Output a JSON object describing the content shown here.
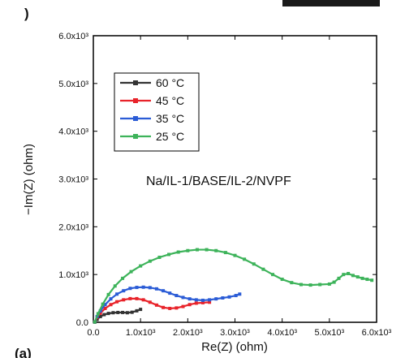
{
  "chart_data": {
    "type": "line",
    "xlabel": "Re(Z) (ohm)",
    "ylabel": "−Im(Z) (ohm)",
    "xlim": [
      0,
      6000
    ],
    "ylim": [
      0,
      6000
    ],
    "x_ticks": [
      0,
      1000,
      2000,
      3000,
      4000,
      5000,
      6000
    ],
    "y_ticks": [
      0,
      1000,
      2000,
      3000,
      4000,
      5000,
      6000
    ],
    "x_tick_labels": [
      "0.0",
      "1.0x10³",
      "2.0x10³",
      "3.0x10³",
      "4.0x10³",
      "5.0x10³",
      "6.0x10³"
    ],
    "y_tick_labels": [
      "0.0",
      "1.0x10³",
      "2.0x10³",
      "3.0x10³",
      "4.0x10³",
      "5.0x10³",
      "6.0x10³"
    ],
    "annotation": "Na/IL-1/BASE/IL-2/NVPF",
    "panel_label": ")",
    "caption_fragment": "(a)",
    "legend_position": "top-left",
    "grid": false,
    "series": [
      {
        "name": "60 °C",
        "color": "#333333",
        "x": [
          30,
          80,
          150,
          230,
          320,
          420,
          520,
          620,
          720,
          820,
          920,
          1000
        ],
        "y": [
          5,
          60,
          120,
          160,
          185,
          200,
          205,
          205,
          200,
          210,
          240,
          270
        ]
      },
      {
        "name": "45 °C",
        "color": "#e8232a",
        "x": [
          30,
          80,
          150,
          250,
          370,
          500,
          640,
          780,
          920,
          1060,
          1200,
          1340,
          1480,
          1620,
          1760,
          1900,
          2040,
          2180,
          2320,
          2460
        ],
        "y": [
          5,
          100,
          190,
          290,
          370,
          430,
          470,
          495,
          495,
          470,
          420,
          360,
          310,
          290,
          300,
          330,
          370,
          400,
          410,
          420
        ]
      },
      {
        "name": "35 °C",
        "color": "#2b5cd6",
        "x": [
          30,
          80,
          150,
          250,
          370,
          500,
          640,
          780,
          920,
          1060,
          1200,
          1340,
          1480,
          1620,
          1760,
          1900,
          2040,
          2180,
          2320,
          2460,
          2600,
          2740,
          2880,
          3020,
          3100
        ],
        "y": [
          5,
          120,
          240,
          370,
          490,
          590,
          660,
          710,
          730,
          735,
          725,
          700,
          660,
          610,
          560,
          520,
          490,
          470,
          460,
          470,
          490,
          510,
          530,
          560,
          590
        ]
      },
      {
        "name": "25 °C",
        "color": "#3db35a",
        "x": [
          30,
          100,
          200,
          320,
          460,
          620,
          800,
          1000,
          1200,
          1400,
          1600,
          1800,
          2000,
          2200,
          2400,
          2600,
          2800,
          3000,
          3200,
          3400,
          3600,
          3800,
          4000,
          4200,
          4400,
          4600,
          4800,
          5000,
          5100,
          5200,
          5300,
          5400,
          5500,
          5600,
          5700,
          5800,
          5900
        ],
        "y": [
          5,
          180,
          380,
          580,
          760,
          920,
          1060,
          1180,
          1280,
          1360,
          1420,
          1470,
          1500,
          1520,
          1520,
          1500,
          1460,
          1400,
          1320,
          1220,
          1110,
          1000,
          900,
          830,
          790,
          780,
          790,
          800,
          840,
          920,
          1000,
          1020,
          980,
          950,
          920,
          900,
          880
        ]
      }
    ]
  }
}
